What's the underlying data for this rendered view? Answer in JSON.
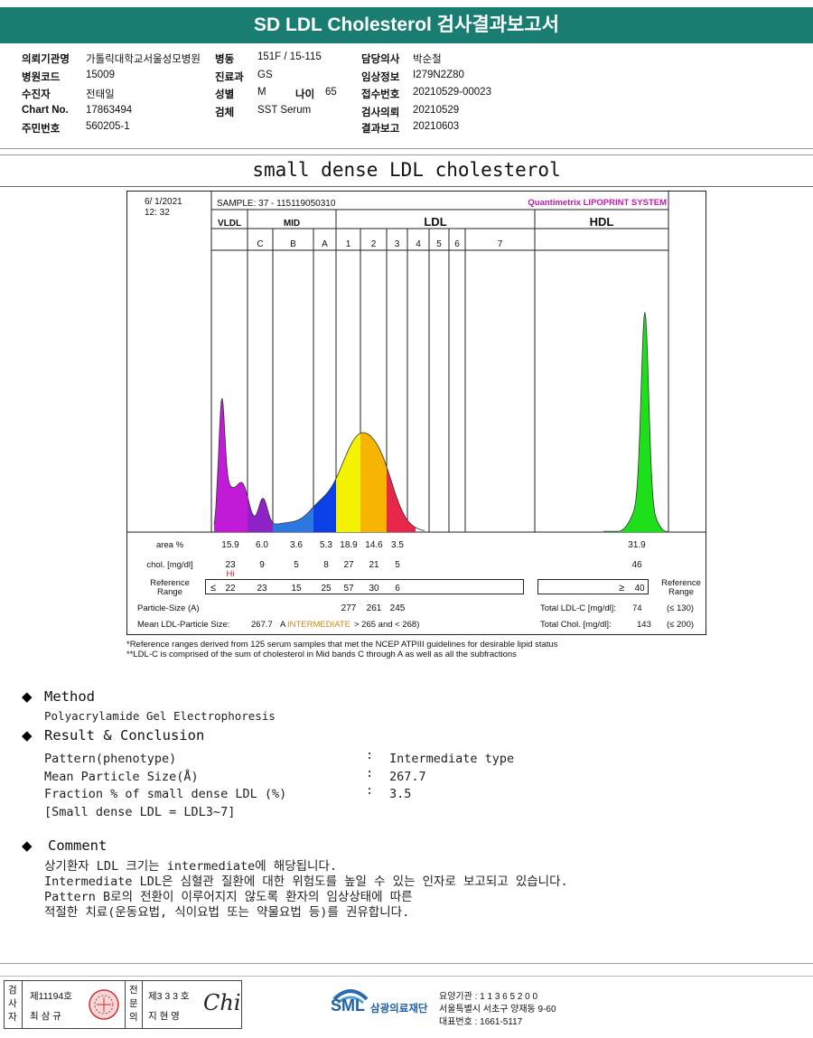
{
  "header": {
    "title": "SD LDL Cholesterol 검사결과보고서"
  },
  "info": {
    "col1": [
      {
        "label": "의뢰기관명",
        "value": "가톨릭대학교서울성모병원"
      },
      {
        "label": "병원코드",
        "value": "15009"
      },
      {
        "label": "수진자",
        "value": "전태일"
      },
      {
        "label": "Chart No.",
        "value": "17863494"
      },
      {
        "label": "주민번호",
        "value": "560205-1"
      }
    ],
    "col2": [
      {
        "label": "병동",
        "value": "151F / 15-115"
      },
      {
        "label": "진료과",
        "value": "GS"
      },
      {
        "label": "성별",
        "value": "M"
      },
      {
        "label": "검체",
        "value": "SST Serum"
      }
    ],
    "age": {
      "label": "나이",
      "value": "65"
    },
    "col3": [
      {
        "label": "담당의사",
        "value": "박순철"
      },
      {
        "label": "임상정보",
        "value": "I279N2Z80"
      },
      {
        "label": "접수번호",
        "value": "20210529-00023"
      },
      {
        "label": "검사의뢰",
        "value": "20210529"
      },
      {
        "label": "결과보고",
        "value": "20210603"
      }
    ]
  },
  "subtitle": "small dense LDL cholesterol",
  "chart_data": {
    "type": "area",
    "title": "Quantimetrix LIPOPRINT SYSTEM",
    "date": "6/ 1/2021",
    "time": "12: 32",
    "sample": "SAMPLE:   37 - 115119050310",
    "groups": [
      "VLDL",
      "MID",
      "LDL",
      "HDL"
    ],
    "bands": [
      {
        "name": "VLDL",
        "group": "VLDL",
        "area": "15.9",
        "chol": "23",
        "flag": "Hi",
        "ref": "≤ 22",
        "color": "#c21bd8"
      },
      {
        "name": "C",
        "group": "MID",
        "area": "6.0",
        "chol": "9",
        "ref": "23",
        "color": "#8e22c8"
      },
      {
        "name": "B",
        "group": "MID",
        "area": "3.6",
        "chol": "5",
        "ref": "15",
        "color": "#2a78e0"
      },
      {
        "name": "A",
        "group": "MID",
        "area": "5.3",
        "chol": "8",
        "ref": "25",
        "color": "#0b3fe8"
      },
      {
        "name": "1",
        "group": "LDL",
        "area": "18.9",
        "chol": "27",
        "ref": "57",
        "size": "277",
        "color": "#f5f200"
      },
      {
        "name": "2",
        "group": "LDL",
        "area": "14.6",
        "chol": "21",
        "ref": "30",
        "size": "261",
        "color": "#f7b400"
      },
      {
        "name": "3",
        "group": "LDL",
        "area": "3.5",
        "chol": "5",
        "ref": "6",
        "size": "245",
        "color": "#e8264a"
      },
      {
        "name": "4",
        "group": "LDL"
      },
      {
        "name": "5",
        "group": "LDL"
      },
      {
        "name": "6",
        "group": "LDL"
      },
      {
        "name": "7",
        "group": "LDL"
      },
      {
        "name": "HDL",
        "group": "HDL",
        "area": "31.9",
        "chol": "46",
        "ref": "≥ 40",
        "color": "#1ee01a"
      }
    ],
    "row_labels": {
      "area": "area %",
      "chol": "chol. [mg/dl]",
      "ref": "Reference Range",
      "ref_right": "Reference Range",
      "size": "Particle-Size (A)",
      "mean": "Mean LDL-Particle Size:"
    },
    "mean_size": "267.7",
    "mean_prefix": "A",
    "mean_class": "INTERMEDIATE",
    "mean_suffix": "> 265 and < 268)",
    "total_ldl": {
      "label": "Total LDL-C [mg/dl]:",
      "value": "74",
      "ref": "(≤ 130)"
    },
    "total_chol": {
      "label": "Total Chol. [mg/dl]:",
      "value": "143",
      "ref": "(≤ 200)"
    }
  },
  "footnotes": [
    "*Reference ranges derived from 125 serum samples that met the NCEP ATPIII guidelines for desirable lipid status",
    "**LDL-C is comprised of the sum of cholesterol in Mid bands C through A as well as all the subfractions"
  ],
  "method": {
    "heading": "Method",
    "text": "Polyacrylamide Gel Electrophoresis"
  },
  "result": {
    "heading": "Result & Conclusion",
    "rows": [
      {
        "label": "Pattern(phenotype)",
        "sep": ":",
        "value": "Intermediate type"
      },
      {
        "label": "Mean Particle Size(Å)",
        "sep": ":",
        "value": "267.7"
      },
      {
        "label": "Fraction % of small dense LDL (%)",
        "sep": ":",
        "value": "3.5"
      }
    ],
    "note": "[Small dense LDL = LDL3~7]"
  },
  "comment": {
    "heading": "Comment",
    "lines": [
      "상기환자 LDL 크기는 intermediate에 해당됩니다.",
      "Intermediate LDL은 심혈관 질환에 대한 위험도를 높일 수 있는 인자로 보고되고 있습니다.",
      "Pattern B로의 전환이 이루어지지 않도록 환자의 임상상태에 따른",
      "적절한 치료(운동요법, 식이요법 또는 약물요법 등)를 권유합니다."
    ]
  },
  "footer": {
    "examiner_label": "검사자",
    "examiner_no": "제11194호",
    "examiner_name": "최 삼 규",
    "specialist_label": "전문의",
    "specialist_no": "제3 3 3 호",
    "specialist_name": "지 현 영",
    "signature": "Chi",
    "logo_text": "SML",
    "org_name": "삼광의료재단",
    "org_lines": [
      "요양기관 : 1 1 3 6 5 2 0 0",
      "서울특별시 서초구 양재동 9-60",
      "대표번호 : 1661-5117"
    ]
  }
}
